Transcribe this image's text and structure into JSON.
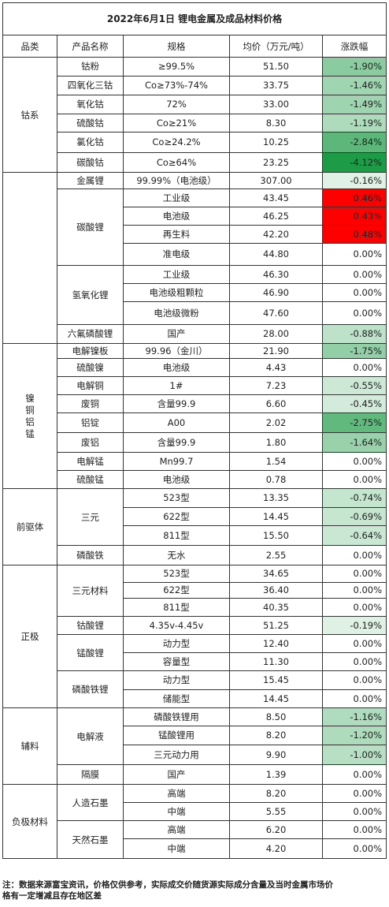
{
  "title": "2022年6月1日 锂电金属及成品材料价格",
  "headers": [
    "品类",
    "产品名称",
    "规格",
    "均价（万元/吨）",
    "涨跌幅"
  ],
  "categories": {
    "cobalt": "钴系",
    "nicu": "镍铜铝锰",
    "precursor": "前驱体",
    "cathode": "正极",
    "aux": "辅料",
    "anode": "负极材料"
  },
  "products": {
    "lithium_carbonate": "碳酸锂",
    "lithium_hydroxide": "氢氧化锂",
    "ternary": "三元",
    "ternary_material": "三元材料",
    "lmo": "锰酸锂",
    "lfp": "磷酸铁锂",
    "electrolyte": "电解液",
    "artificial_graphite": "人造石墨",
    "natural_graphite": "天然石墨"
  },
  "rows": [
    {
      "name": "钴粉",
      "spec": "≥99.5%",
      "price": "51.50",
      "change": "-1.90%"
    },
    {
      "name": "四氧化三钴",
      "spec": "Co≥73%-74%",
      "price": "33.75",
      "change": "-1.46%"
    },
    {
      "name": "氧化钴",
      "spec": "72%",
      "price": "33.00",
      "change": "-1.49%"
    },
    {
      "name": "硫酸钴",
      "spec": "Co≥21%",
      "price": "8.30",
      "change": "-1.19%"
    },
    {
      "name": "氯化钴",
      "spec": "Co≥24.2%",
      "price": "10.25",
      "change": "-2.84%"
    },
    {
      "name": "碳酸钴",
      "spec": "Co≥64%",
      "price": "23.25",
      "change": "-4.12%"
    },
    {
      "name": "金属锂",
      "spec": "99.99%（电池级）",
      "price": "307.00",
      "change": "-0.16%"
    },
    {
      "name": "",
      "spec": "工业级",
      "price": "43.45",
      "change": "0.46%"
    },
    {
      "name": "",
      "spec": "电池级",
      "price": "46.25",
      "change": "0.43%"
    },
    {
      "name": "",
      "spec": "再生料",
      "price": "42.20",
      "change": "0.48%"
    },
    {
      "name": "",
      "spec": "准电级",
      "price": "44.80",
      "change": "0.00%"
    },
    {
      "name": "",
      "spec": "工业级",
      "price": "46.30",
      "change": "0.00%"
    },
    {
      "name": "",
      "spec": "电池级粗颗粒",
      "price": "46.90",
      "change": "0.00%"
    },
    {
      "name": "",
      "spec": "电池级微粉",
      "price": "47.60",
      "change": "0.00%"
    },
    {
      "name": "六氟磷酸锂",
      "spec": "国产",
      "price": "28.00",
      "change": "-0.88%"
    },
    {
      "name": "电解镍板",
      "spec": "99.96（金川）",
      "price": "21.90",
      "change": "-1.75%"
    },
    {
      "name": "硫酸镍",
      "spec": "电池级",
      "price": "4.43",
      "change": "0.00%"
    },
    {
      "name": "电解铜",
      "spec": "1#",
      "price": "7.23",
      "change": "-0.55%"
    },
    {
      "name": "废铜",
      "spec": "含量99.9",
      "price": "6.60",
      "change": "-0.45%"
    },
    {
      "name": "铝锭",
      "spec": "A00",
      "price": "2.02",
      "change": "-2.75%"
    },
    {
      "name": "废铝",
      "spec": "含量99.9",
      "price": "1.80",
      "change": "-1.64%"
    },
    {
      "name": "电解锰",
      "spec": "Mn99.7",
      "price": "1.54",
      "change": "0.00%"
    },
    {
      "name": "硫酸锰",
      "spec": "电池级",
      "price": "0.78",
      "change": "0.00%"
    },
    {
      "name": "",
      "spec": "523型",
      "price": "13.35",
      "change": "-0.74%"
    },
    {
      "name": "",
      "spec": "622型",
      "price": "14.45",
      "change": "-0.69%"
    },
    {
      "name": "",
      "spec": "811型",
      "price": "15.50",
      "change": "-0.64%"
    },
    {
      "name": "磷酸铁",
      "spec": "无水",
      "price": "2.55",
      "change": "0.00%"
    },
    {
      "name": "",
      "spec": "523型",
      "price": "34.65",
      "change": "0.00%"
    },
    {
      "name": "",
      "spec": "622型",
      "price": "36.40",
      "change": "0.00%"
    },
    {
      "name": "",
      "spec": "811型",
      "price": "40.35",
      "change": "0.00%"
    },
    {
      "name": "钴酸锂",
      "spec": "4.35v-4.45v",
      "price": "51.25",
      "change": "-0.19%"
    },
    {
      "name": "",
      "spec": "动力型",
      "price": "12.40",
      "change": "0.00%"
    },
    {
      "name": "",
      "spec": "容量型",
      "price": "11.30",
      "change": "0.00%"
    },
    {
      "name": "",
      "spec": "动力型",
      "price": "15.45",
      "change": "0.00%"
    },
    {
      "name": "",
      "spec": "储能型",
      "price": "14.45",
      "change": "0.00%"
    },
    {
      "name": "",
      "spec": "磷酸铁锂用",
      "price": "8.50",
      "change": "-1.16%"
    },
    {
      "name": "",
      "spec": "锰酸锂用",
      "price": "8.20",
      "change": "-1.20%"
    },
    {
      "name": "",
      "spec": "三元动力用",
      "price": "9.90",
      "change": "-1.00%"
    },
    {
      "name": "隔膜",
      "spec": "国产",
      "price": "1.39",
      "change": "0.00%"
    },
    {
      "name": "",
      "spec": "高端",
      "price": "8.20",
      "change": "0.00%"
    },
    {
      "name": "",
      "spec": "中端",
      "price": "5.55",
      "change": "0.00%"
    },
    {
      "name": "",
      "spec": "高端",
      "price": "6.20",
      "change": "0.00%"
    },
    {
      "name": "",
      "spec": "中端",
      "price": "4.20",
      "change": "0.00%"
    }
  ],
  "colors": {
    "rise": "#ff0000",
    "fall_strong": "#1e9b47",
    "fall_light": "#e8f5ec",
    "zero": "#ffffff"
  },
  "note": "注：数据来源富宝资讯，价格仅供参考，实际成交价随货源实际成分含量及当时金属市场价\n格有一定增减且存在地区差"
}
